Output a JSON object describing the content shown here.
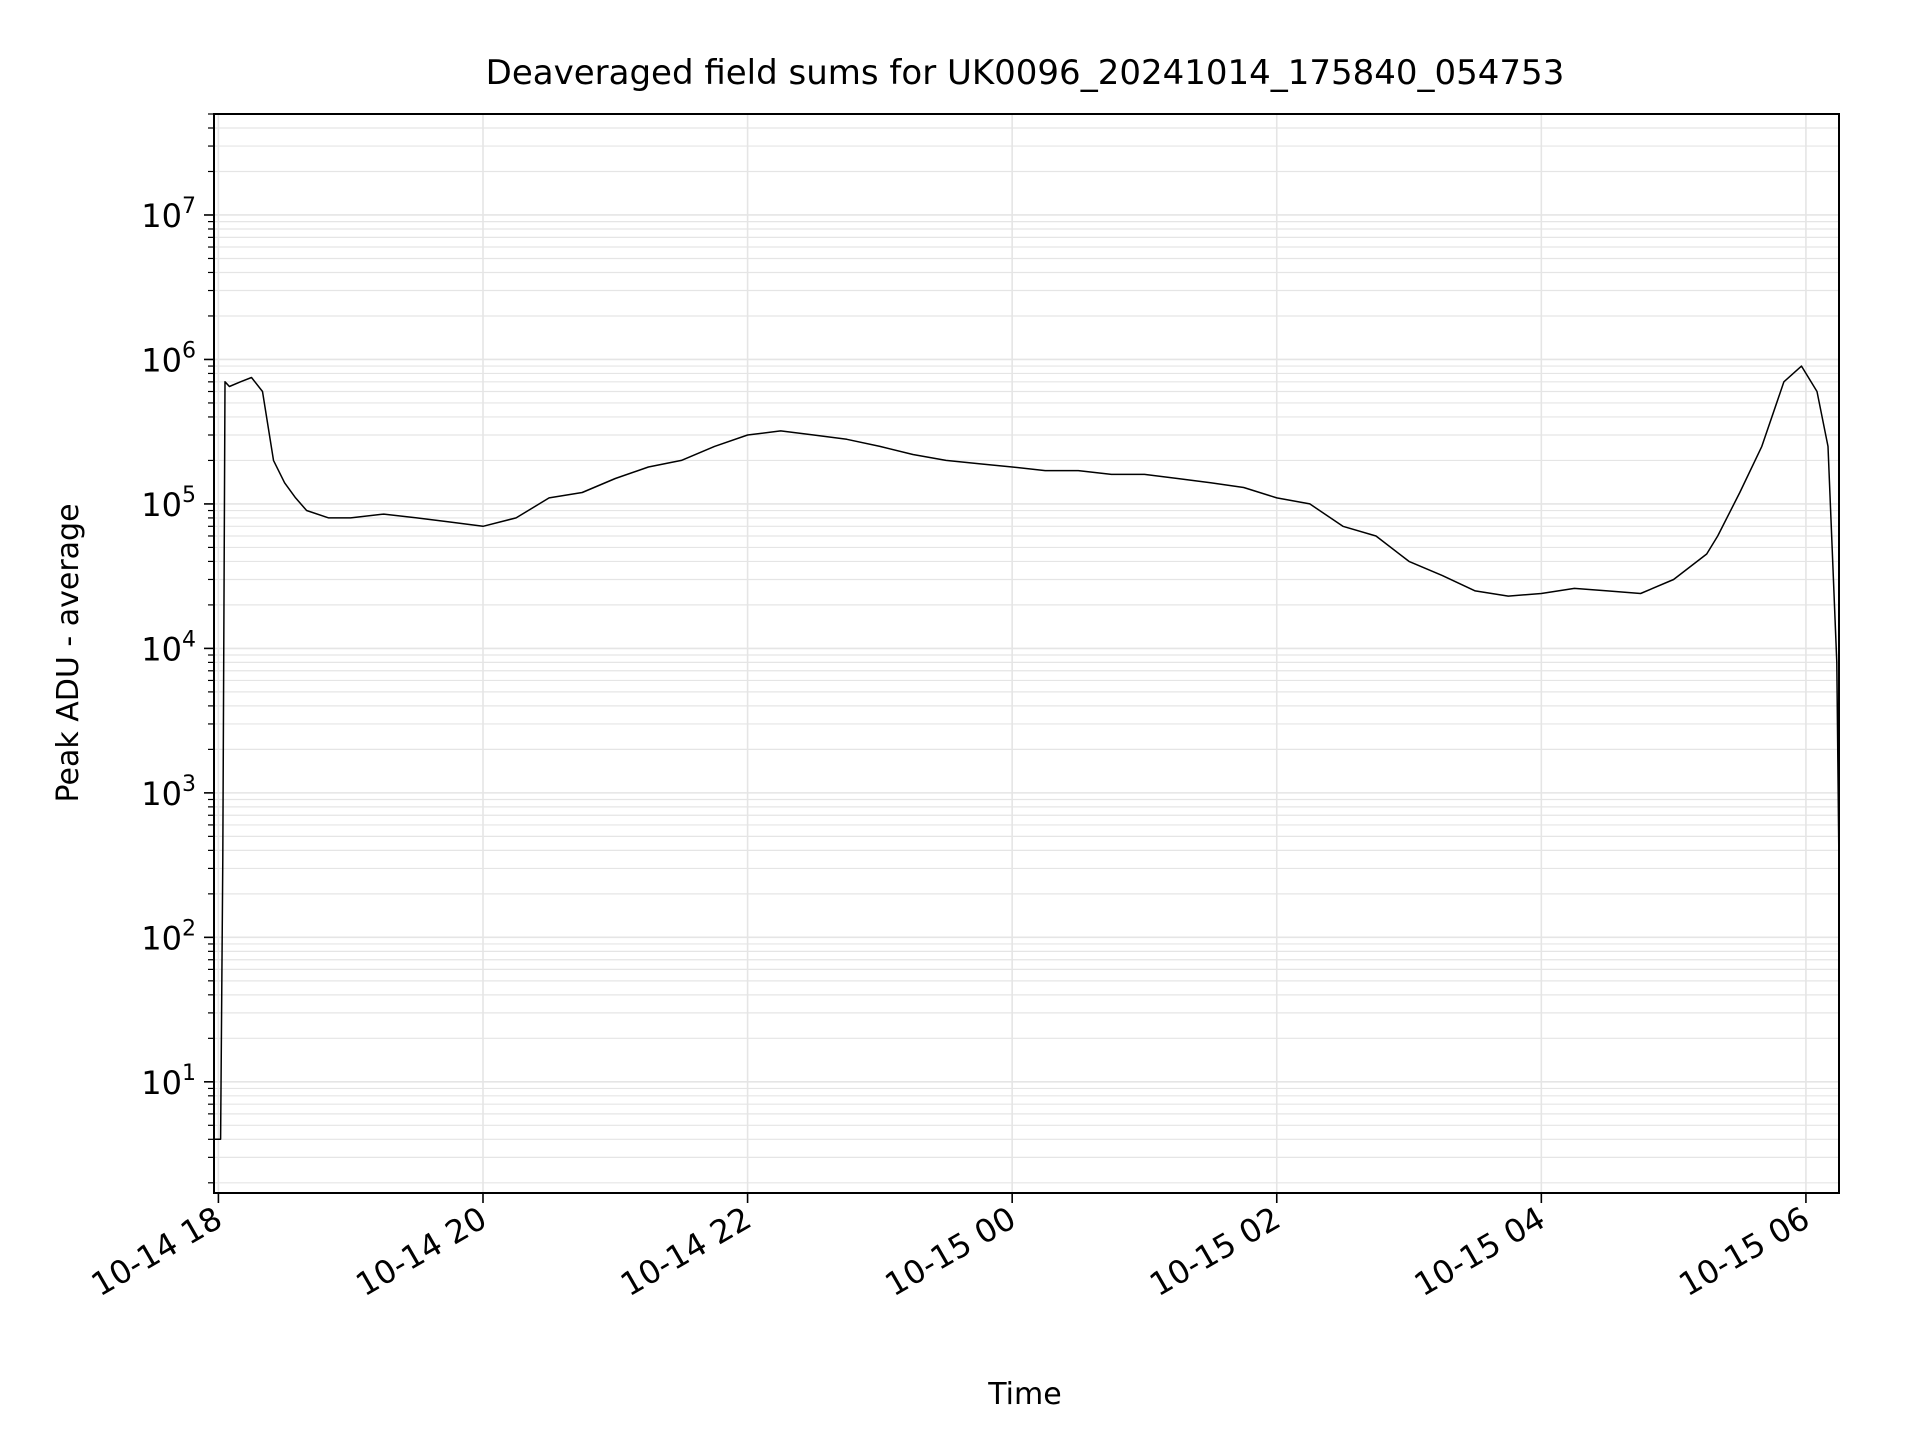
{
  "chart_data": {
    "type": "line",
    "title": "Deaveraged field sums for UK0096_20241014_175840_054753",
    "xlabel": "Time",
    "ylabel": "Peak ADU - average",
    "y_scale": "log",
    "ylim": [
      1.7,
      50000000
    ],
    "xlim": [
      "2024-10-14 17:58",
      "2024-10-15 06:15"
    ],
    "grid": true,
    "colors": {
      "line": "#000000",
      "grid": "#e5e5e5",
      "axes": "#000000"
    },
    "x_ticks": [
      {
        "t": "2024-10-14 18:00",
        "label": "10-14 18"
      },
      {
        "t": "2024-10-14 20:00",
        "label": "10-14 20"
      },
      {
        "t": "2024-10-14 22:00",
        "label": "10-14 22"
      },
      {
        "t": "2024-10-15 00:00",
        "label": "10-15 00"
      },
      {
        "t": "2024-10-15 02:00",
        "label": "10-15 02"
      },
      {
        "t": "2024-10-15 04:00",
        "label": "10-15 04"
      },
      {
        "t": "2024-10-15 06:00",
        "label": "10-15 06"
      }
    ],
    "y_ticks": [
      {
        "value": 10,
        "base": "10",
        "exp": "1"
      },
      {
        "value": 100,
        "base": "10",
        "exp": "2"
      },
      {
        "value": 1000,
        "base": "10",
        "exp": "3"
      },
      {
        "value": 10000,
        "base": "10",
        "exp": "4"
      },
      {
        "value": 100000,
        "base": "10",
        "exp": "5"
      },
      {
        "value": 1000000,
        "base": "10",
        "exp": "6"
      },
      {
        "value": 10000000,
        "base": "10",
        "exp": "7"
      }
    ],
    "series": [
      {
        "x": [
          "2024-10-14 17:58",
          "2024-10-14 17:59",
          "2024-10-14 18:00",
          "2024-10-14 18:01",
          "2024-10-14 18:02",
          "2024-10-14 18:03",
          "2024-10-14 18:05",
          "2024-10-14 18:10",
          "2024-10-14 18:15",
          "2024-10-14 18:20",
          "2024-10-14 18:25",
          "2024-10-14 18:30",
          "2024-10-14 18:35",
          "2024-10-14 18:40",
          "2024-10-14 18:50",
          "2024-10-14 19:00",
          "2024-10-14 19:15",
          "2024-10-14 19:30",
          "2024-10-14 19:45",
          "2024-10-14 20:00",
          "2024-10-14 20:15",
          "2024-10-14 20:30",
          "2024-10-14 20:45",
          "2024-10-14 21:00",
          "2024-10-14 21:15",
          "2024-10-14 21:30",
          "2024-10-14 21:45",
          "2024-10-14 22:00",
          "2024-10-14 22:15",
          "2024-10-14 22:30",
          "2024-10-14 22:45",
          "2024-10-14 23:00",
          "2024-10-14 23:15",
          "2024-10-14 23:30",
          "2024-10-14 23:45",
          "2024-10-15 00:00",
          "2024-10-15 00:15",
          "2024-10-15 00:30",
          "2024-10-15 00:45",
          "2024-10-15 01:00",
          "2024-10-15 01:15",
          "2024-10-15 01:30",
          "2024-10-15 01:45",
          "2024-10-15 02:00",
          "2024-10-15 02:15",
          "2024-10-15 02:30",
          "2024-10-15 02:45",
          "2024-10-15 03:00",
          "2024-10-15 03:15",
          "2024-10-15 03:30",
          "2024-10-15 03:45",
          "2024-10-15 04:00",
          "2024-10-15 04:15",
          "2024-10-15 04:30",
          "2024-10-15 04:45",
          "2024-10-15 05:00",
          "2024-10-15 05:15",
          "2024-10-15 05:20",
          "2024-10-15 05:30",
          "2024-10-15 05:40",
          "2024-10-15 05:50",
          "2024-10-15 05:58",
          "2024-10-15 06:05",
          "2024-10-15 06:10",
          "2024-10-15 06:12",
          "2024-10-15 06:14",
          "2024-10-15 06:15"
        ],
        "y": [
          4,
          4,
          4,
          4,
          350,
          700000,
          650000,
          700000,
          750000,
          600000,
          200000,
          140000,
          110000,
          90000,
          80000,
          80000,
          85000,
          80000,
          75000,
          70000,
          80000,
          110000,
          120000,
          150000,
          180000,
          200000,
          250000,
          300000,
          320000,
          300000,
          280000,
          250000,
          220000,
          200000,
          190000,
          180000,
          170000,
          170000,
          160000,
          160000,
          150000,
          140000,
          130000,
          110000,
          100000,
          70000,
          60000,
          40000,
          32000,
          25000,
          23000,
          24000,
          26000,
          25000,
          24000,
          30000,
          45000,
          60000,
          120000,
          250000,
          700000,
          900000,
          600000,
          250000,
          45000,
          8000,
          300
        ]
      }
    ]
  }
}
